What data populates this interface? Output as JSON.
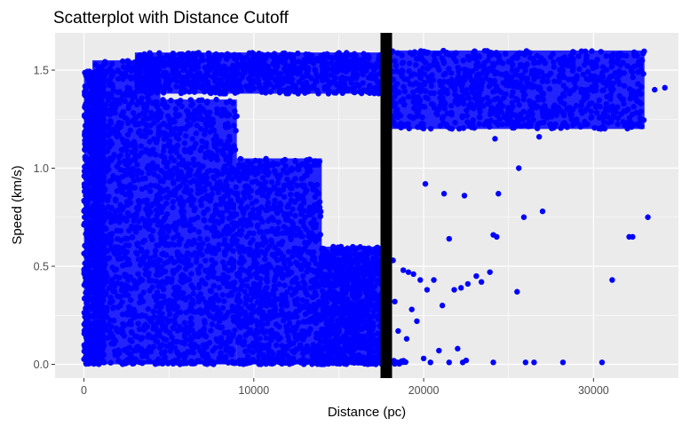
{
  "chart_data": {
    "type": "scatter",
    "title": "Scatterplot with Distance Cutoff",
    "xlabel": "Distance (pc)",
    "ylabel": "Speed (km/s)",
    "xlim": [
      -1700,
      35000
    ],
    "ylim": [
      -0.07,
      1.69
    ],
    "x_ticks": [
      0,
      10000,
      20000,
      30000
    ],
    "x_tick_labels": [
      "0",
      "10000",
      "20000",
      "30000"
    ],
    "y_ticks": [
      0.0,
      0.5,
      1.0,
      1.5
    ],
    "y_tick_labels": [
      "0.0",
      "0.5",
      "1.0",
      "1.5"
    ],
    "grid": true,
    "legend": "none",
    "colors": {
      "points": "#0000ff",
      "cutoff_line": "#000000",
      "panel_background": "#ebebeb",
      "grid": "#ffffff"
    },
    "cutoff_line": {
      "x": 17800
    },
    "point_clusters": [
      {
        "x": [
          0,
          1200
        ],
        "y": [
          0.0,
          1.5
        ]
      },
      {
        "x": [
          500,
          4500
        ],
        "y": [
          0.0,
          1.55
        ]
      },
      {
        "x": [
          4500,
          9000
        ],
        "y": [
          0.0,
          1.35
        ]
      },
      {
        "x": [
          9000,
          14000
        ],
        "y": [
          0.0,
          1.05
        ]
      },
      {
        "x": [
          14000,
          17800
        ],
        "y": [
          0.0,
          0.6
        ]
      },
      {
        "x": [
          3000,
          18000
        ],
        "y": [
          1.38,
          1.59
        ]
      },
      {
        "x": [
          18000,
          33000
        ],
        "y": [
          1.2,
          1.6
        ]
      },
      {
        "x": [
          2000,
          19000
        ],
        "y": [
          0.0,
          0.02
        ]
      }
    ],
    "points": [
      [
        20100,
        0.92
      ],
      [
        21200,
        0.87
      ],
      [
        22400,
        0.86
      ],
      [
        24400,
        0.87
      ],
      [
        25600,
        1.0
      ],
      [
        25900,
        0.75
      ],
      [
        21500,
        0.64
      ],
      [
        24100,
        0.66
      ],
      [
        24300,
        0.65
      ],
      [
        27000,
        0.78
      ],
      [
        32100,
        0.65
      ],
      [
        32300,
        0.65
      ],
      [
        31100,
        0.43
      ],
      [
        33200,
        0.75
      ],
      [
        25500,
        0.37
      ],
      [
        18200,
        0.53
      ],
      [
        18800,
        0.48
      ],
      [
        19100,
        0.47
      ],
      [
        19400,
        0.46
      ],
      [
        19800,
        0.43
      ],
      [
        20200,
        0.38
      ],
      [
        20600,
        0.43
      ],
      [
        21100,
        0.3
      ],
      [
        21800,
        0.38
      ],
      [
        22200,
        0.39
      ],
      [
        22600,
        0.41
      ],
      [
        23100,
        0.45
      ],
      [
        23400,
        0.42
      ],
      [
        23900,
        0.47
      ],
      [
        19600,
        0.22
      ],
      [
        19000,
        0.13
      ],
      [
        20900,
        0.07
      ],
      [
        20000,
        0.03
      ],
      [
        20400,
        0.01
      ],
      [
        21500,
        0.01
      ],
      [
        22300,
        0.01
      ],
      [
        22500,
        0.02
      ],
      [
        24100,
        0.01
      ],
      [
        26000,
        0.01
      ],
      [
        26500,
        0.01
      ],
      [
        28200,
        0.01
      ],
      [
        30500,
        0.01
      ],
      [
        19300,
        0.28
      ],
      [
        18500,
        0.17
      ],
      [
        18300,
        0.32
      ],
      [
        22000,
        0.08
      ],
      [
        26800,
        1.16
      ],
      [
        27700,
        1.21
      ],
      [
        29000,
        1.23
      ],
      [
        31800,
        1.29
      ],
      [
        33600,
        1.4
      ],
      [
        34200,
        1.41
      ],
      [
        28600,
        1.29
      ],
      [
        30200,
        1.32
      ],
      [
        24200,
        1.15
      ]
    ]
  }
}
